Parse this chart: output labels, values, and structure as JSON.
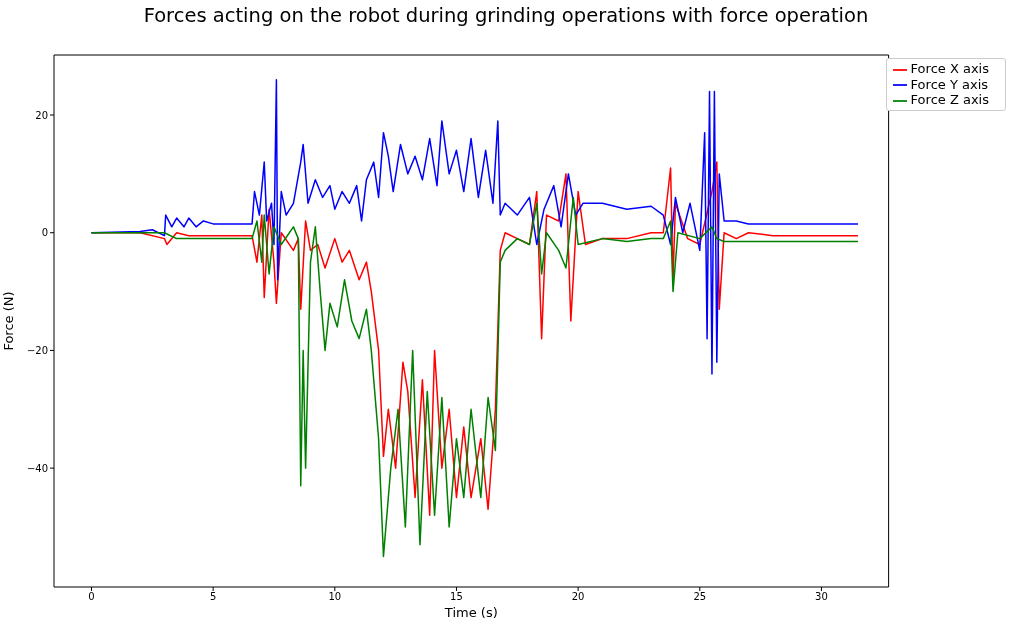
{
  "chart_data": {
    "type": "line",
    "title": "Forces acting on the robot during grinding operations with force operation",
    "xlabel": "Time (s)",
    "ylabel": "Force (N)",
    "xlim": [
      -1.54,
      32.76
    ],
    "ylim": [
      -60.2,
      30.2
    ],
    "xticks": [
      0,
      5,
      10,
      15,
      20,
      25,
      30
    ],
    "yticks": [
      {
        "value": -40,
        "label": "−40"
      },
      {
        "value": -20,
        "label": "−20"
      },
      0,
      20
    ],
    "legend": "top right",
    "marker": "none",
    "line_style": "solid",
    "series": [
      {
        "name": "Force X axis",
        "color": "#ff0000",
        "x": [
          0,
          2,
          3,
          3.1,
          3.5,
          4,
          5,
          6.6,
          6.8,
          7,
          7.1,
          7.3,
          7.5,
          7.6,
          7.8,
          8.3,
          8.5,
          8.6,
          8.8,
          9,
          9.3,
          9.6,
          10,
          10.3,
          10.6,
          11,
          11.3,
          11.5,
          11.8,
          12,
          12.2,
          12.5,
          12.8,
          13,
          13.3,
          13.6,
          13.9,
          14.1,
          14.4,
          14.7,
          15,
          15.3,
          15.6,
          16,
          16.3,
          16.6,
          16.8,
          17,
          17.5,
          18,
          18.3,
          18.5,
          18.7,
          19.2,
          19.5,
          19.7,
          20,
          20.3,
          21,
          22,
          23,
          23.5,
          23.8,
          23.9,
          24,
          24.5,
          25,
          25.5,
          25.7,
          25.8,
          26,
          26.5,
          27,
          28,
          30,
          31.5
        ],
        "values": [
          0,
          0,
          -1,
          -2,
          0,
          -0.5,
          -0.5,
          -0.5,
          -5,
          3,
          -11,
          4,
          -5,
          -12,
          0,
          -3,
          -1,
          -13,
          2,
          -3,
          -2,
          -6,
          -1,
          -5,
          -3,
          -8,
          -5,
          -10,
          -20,
          -38,
          -30,
          -40,
          -22,
          -27,
          -45,
          -25,
          -48,
          -20,
          -40,
          -30,
          -45,
          -33,
          -45,
          -35,
          -47,
          -30,
          -3,
          0,
          -1,
          -2,
          7,
          -18,
          3,
          2,
          10,
          -15,
          7,
          -2,
          -1,
          -1,
          0,
          0,
          11,
          -8,
          5,
          -1,
          -2,
          7,
          12,
          -13,
          0,
          -1,
          0,
          -0.5,
          -0.5,
          -0.5
        ]
      },
      {
        "name": "Force Y axis",
        "color": "#0000ff",
        "x": [
          0,
          2,
          2.5,
          3,
          3.05,
          3.3,
          3.5,
          3.8,
          4,
          4.3,
          4.6,
          5,
          6,
          6.6,
          6.7,
          6.9,
          7.1,
          7.2,
          7.4,
          7.5,
          7.6,
          7.65,
          7.8,
          8,
          8.3,
          8.6,
          8.7,
          8.9,
          9.2,
          9.5,
          9.8,
          10,
          10.3,
          10.6,
          10.9,
          11.1,
          11.3,
          11.6,
          11.8,
          12,
          12.2,
          12.4,
          12.7,
          13,
          13.3,
          13.6,
          13.9,
          14.2,
          14.4,
          14.7,
          15,
          15.3,
          15.6,
          15.9,
          16.2,
          16.5,
          16.7,
          16.8,
          17,
          17.5,
          18,
          18.3,
          18.6,
          19,
          19.3,
          19.6,
          19.9,
          20.2,
          21,
          22,
          23,
          23.5,
          23.8,
          24,
          24.3,
          24.6,
          25,
          25.2,
          25.3,
          25.4,
          25.5,
          25.6,
          25.7,
          25.8,
          26,
          26.5,
          27,
          28,
          30,
          31.5
        ],
        "values": [
          0,
          0.2,
          0.5,
          -0.5,
          3,
          1,
          2.5,
          1,
          2.5,
          1,
          2,
          1.5,
          1.5,
          1.5,
          7,
          3,
          12,
          2,
          5,
          -2,
          26,
          -8,
          7,
          3,
          5,
          12,
          15,
          5,
          9,
          6,
          8,
          4,
          7,
          5,
          8,
          2,
          9,
          12,
          6,
          17,
          13,
          7,
          15,
          10,
          13,
          9,
          16,
          8,
          19,
          10,
          14,
          7,
          16,
          6,
          14,
          5,
          19,
          3,
          5,
          3,
          6,
          -2,
          4,
          8,
          1,
          10,
          3,
          5,
          5,
          4,
          4.5,
          3,
          -2,
          6,
          0,
          5,
          -3,
          17,
          -18,
          24,
          -24,
          24,
          -22,
          10,
          2,
          2,
          1.5,
          1.5,
          1.5,
          1.5
        ]
      },
      {
        "name": "Force Z axis",
        "color": "#008000",
        "x": [
          0,
          2,
          3,
          3.5,
          4,
          5,
          6.6,
          6.8,
          7,
          7.1,
          7.3,
          7.5,
          7.8,
          8.3,
          8.5,
          8.6,
          8.7,
          8.8,
          9,
          9.2,
          9.4,
          9.6,
          9.8,
          10.1,
          10.4,
          10.7,
          11,
          11.3,
          11.5,
          11.8,
          12,
          12.3,
          12.6,
          12.9,
          13.2,
          13.5,
          13.8,
          14.1,
          14.4,
          14.7,
          15,
          15.3,
          15.6,
          16,
          16.3,
          16.6,
          16.8,
          17,
          17.5,
          18,
          18.3,
          18.5,
          18.7,
          19.2,
          19.5,
          19.8,
          20,
          21,
          22,
          23,
          23.5,
          23.8,
          23.9,
          24.1,
          25,
          25.5,
          25.7,
          26,
          27,
          30,
          31.5
        ],
        "values": [
          0,
          0,
          0,
          -1,
          -1,
          -1,
          -1,
          2,
          -5,
          3,
          -7,
          1,
          -2,
          1,
          -1,
          -43,
          -20,
          -40,
          -5,
          1,
          -10,
          -20,
          -12,
          -16,
          -8,
          -15,
          -18,
          -13,
          -20,
          -35,
          -55,
          -40,
          -30,
          -50,
          -20,
          -53,
          -27,
          -48,
          -28,
          -50,
          -35,
          -45,
          -30,
          -45,
          -28,
          -37,
          -5,
          -3,
          -1,
          -2,
          5,
          -7,
          0,
          -3,
          -6,
          6,
          -2,
          -1,
          -1.5,
          -1,
          -1,
          2,
          -10,
          0,
          -1,
          1,
          -1,
          -1.5,
          -1.5,
          -1.5,
          -1.5
        ]
      }
    ]
  }
}
